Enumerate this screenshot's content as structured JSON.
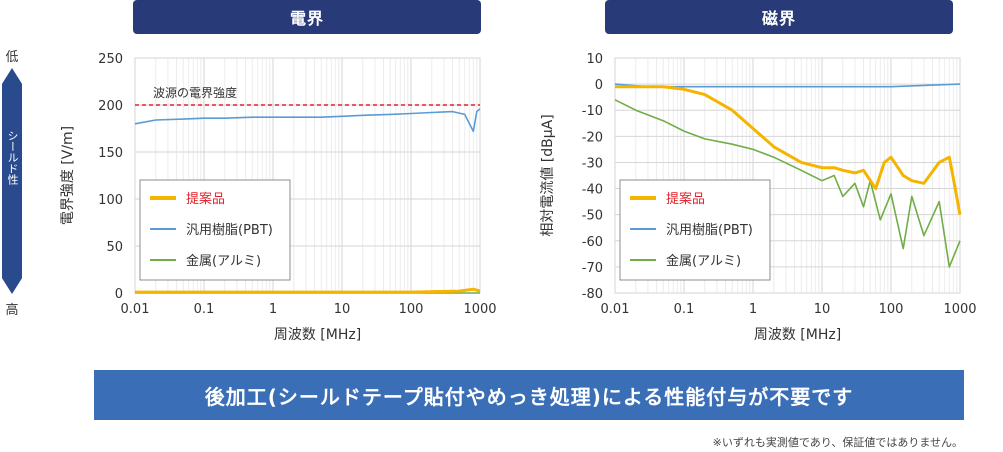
{
  "panels": {
    "left_title": "電界",
    "right_title": "磁界"
  },
  "shield_scale": {
    "low": "低",
    "label": "シールド性",
    "high": "高"
  },
  "banner": "後加工(シールドテープ貼付やめっき処理)による性能付与が不要です",
  "note": "※いずれも実測値であり、保証値ではありません。",
  "colors": {
    "proposed": "#f5b400",
    "pbt": "#5b9bd5",
    "aluminum": "#70ad47",
    "source_line": "#e0202a",
    "header": "#283a78",
    "banner": "#3a6fb8"
  },
  "chart_data": [
    {
      "type": "line",
      "xlabel": "周波数 [MHz]",
      "ylabel": "電界強度 [V/m]",
      "x_scale": "log",
      "xlim": [
        0.01,
        1000
      ],
      "ylim": [
        0,
        250
      ],
      "x_ticks": [
        "0.01",
        "0.1",
        "1",
        "10",
        "100",
        "1000"
      ],
      "y_ticks": [
        "0",
        "50",
        "100",
        "150",
        "200",
        "250"
      ],
      "grid": true,
      "legend": "bottom-left",
      "reference_line": {
        "label": "波源の電界強度",
        "y": 200
      },
      "series": [
        {
          "name": "提案品",
          "x": [
            0.01,
            0.1,
            1,
            10,
            100,
            500,
            800,
            1000
          ],
          "y": [
            1,
            1,
            1,
            1,
            1,
            2,
            4,
            2
          ]
        },
        {
          "name": "汎用樹脂(PBT)",
          "x": [
            0.01,
            0.02,
            0.05,
            0.1,
            0.2,
            0.5,
            1,
            2,
            5,
            10,
            20,
            50,
            100,
            200,
            400,
            600,
            800,
            900,
            1000
          ],
          "y": [
            180,
            184,
            185,
            186,
            186,
            187,
            187,
            187,
            187,
            188,
            189,
            190,
            191,
            192,
            193,
            190,
            172,
            193,
            196
          ]
        },
        {
          "name": "金属(アルミ)",
          "x": [
            0.01,
            0.1,
            1,
            10,
            100,
            1000
          ],
          "y": [
            0,
            0,
            0,
            0,
            0,
            0
          ]
        }
      ]
    },
    {
      "type": "line",
      "xlabel": "周波数 [MHz]",
      "ylabel": "相対電流値 [dBμA]",
      "x_scale": "log",
      "xlim": [
        0.01,
        1000
      ],
      "ylim": [
        -80,
        10
      ],
      "x_ticks": [
        "0.01",
        "0.1",
        "1",
        "10",
        "100",
        "1000"
      ],
      "y_ticks": [
        "10",
        "0",
        "-10",
        "-20",
        "-30",
        "-40",
        "-50",
        "-60",
        "-70",
        "-80"
      ],
      "grid": true,
      "legend": "bottom-left",
      "series": [
        {
          "name": "提案品",
          "x": [
            0.01,
            0.02,
            0.05,
            0.1,
            0.2,
            0.5,
            1,
            2,
            5,
            10,
            15,
            20,
            30,
            40,
            60,
            80,
            100,
            150,
            200,
            300,
            500,
            700,
            800,
            1000
          ],
          "y": [
            -1,
            -1,
            -1,
            -2,
            -4,
            -10,
            -17,
            -24,
            -30,
            -32,
            -32,
            -33,
            -34,
            -33,
            -40,
            -30,
            -28,
            -35,
            -37,
            -38,
            -30,
            -28,
            -36,
            -50
          ]
        },
        {
          "name": "汎用樹脂(PBT)",
          "x": [
            0.01,
            0.03,
            0.1,
            1,
            10,
            100,
            1000
          ],
          "y": [
            0,
            -1,
            -1,
            -1,
            -1,
            -1,
            0
          ]
        },
        {
          "name": "金属(アルミ)",
          "x": [
            0.01,
            0.02,
            0.05,
            0.1,
            0.2,
            0.5,
            1,
            2,
            5,
            10,
            15,
            20,
            30,
            40,
            50,
            70,
            100,
            150,
            200,
            300,
            500,
            700,
            1000
          ],
          "y": [
            -6,
            -10,
            -14,
            -18,
            -21,
            -23,
            -25,
            -28,
            -33,
            -37,
            -35,
            -43,
            -38,
            -47,
            -37,
            -52,
            -42,
            -63,
            -43,
            -58,
            -45,
            -70,
            -60
          ]
        }
      ]
    }
  ]
}
